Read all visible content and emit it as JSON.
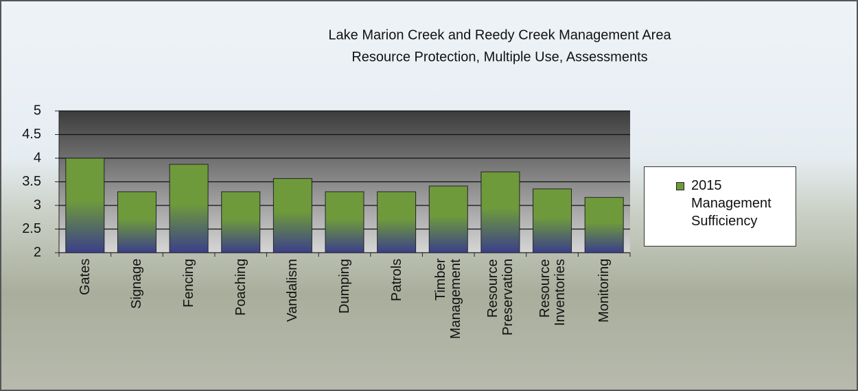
{
  "chart_data": {
    "type": "bar",
    "title": "Lake Marion Creek and Reedy Creek Management Area",
    "subtitle": "Resource Protection, Multiple Use, Assessments",
    "categories": [
      "Gates",
      "Signage",
      "Fencing",
      "Poaching",
      "Vandalism",
      "Dumping",
      "Patrols",
      "Timber Management",
      "Resource Preservation",
      "Resource Inventories",
      "Monitoring"
    ],
    "series": [
      {
        "name": "2015 Management Sufficiency",
        "color": "#6f9a3c",
        "values": [
          4.0,
          3.29,
          3.87,
          3.29,
          3.57,
          3.29,
          3.29,
          3.41,
          3.71,
          3.35,
          3.17
        ]
      }
    ],
    "ylim": [
      2,
      5
    ],
    "yticks": [
      2,
      2.5,
      3,
      3.5,
      4,
      4.5,
      5
    ],
    "grid": true,
    "legend": "right"
  }
}
